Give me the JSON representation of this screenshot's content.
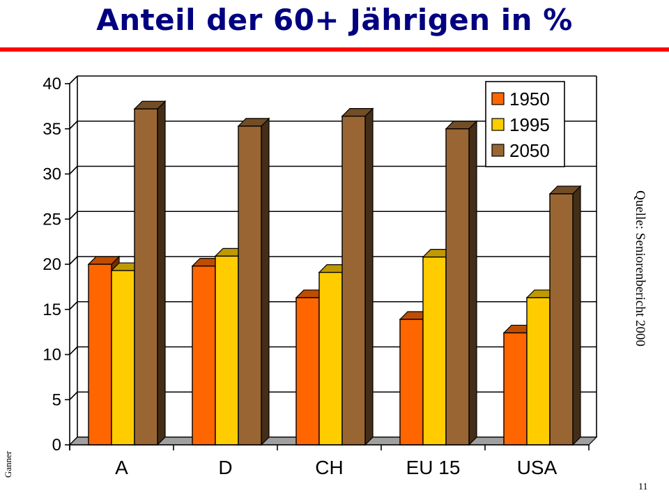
{
  "slide": {
    "title": "Anteil der 60+ Jährigen in %",
    "source_note": "Quelle: Seniorenbericht 2000",
    "author_note": "Ganner",
    "page_number": "11",
    "rule_color": "#ff0000",
    "title_color": "#000080"
  },
  "chart_data": {
    "type": "bar",
    "title": "",
    "xlabel": "",
    "ylabel": "",
    "categories": [
      "A",
      "D",
      "CH",
      "EU 15",
      "USA"
    ],
    "series": [
      {
        "name": "1950",
        "values": [
          20.0,
          19.8,
          16.3,
          13.9,
          12.4
        ],
        "color": "#ff6600"
      },
      {
        "name": "1995",
        "values": [
          19.3,
          20.9,
          19.1,
          20.8,
          16.3
        ],
        "color": "#ffcc00"
      },
      {
        "name": "2050",
        "values": [
          37.2,
          35.3,
          36.4,
          35.0,
          27.8
        ],
        "color": "#996633"
      }
    ],
    "ylim": [
      0,
      40
    ],
    "yticks": [
      0,
      5,
      10,
      15,
      20,
      25,
      30,
      35,
      40
    ],
    "grid": true,
    "legend": "top-right",
    "style": "3d-bar"
  }
}
